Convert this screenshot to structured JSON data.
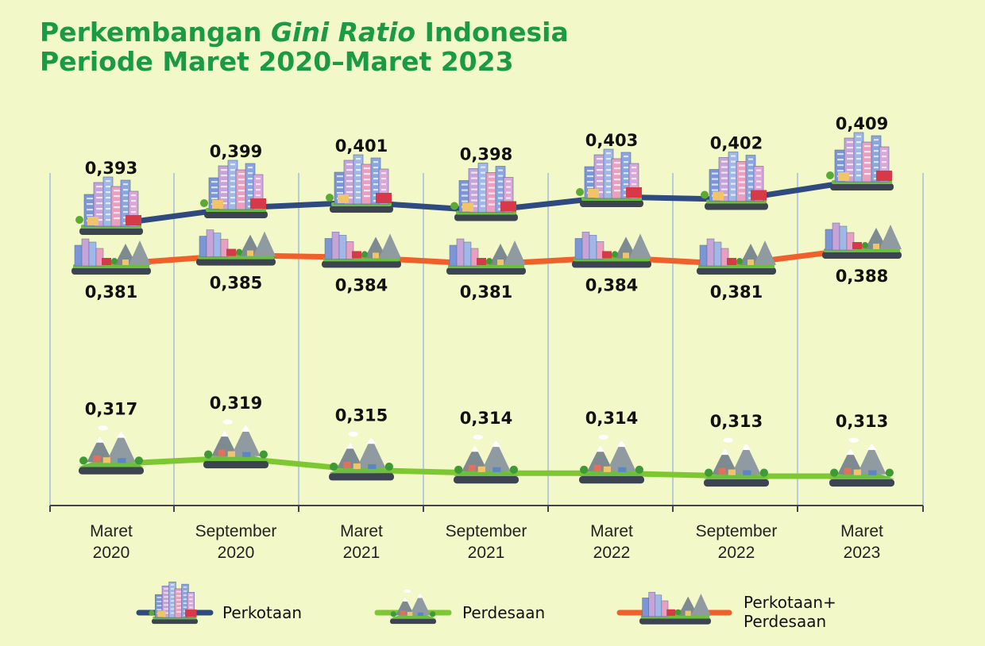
{
  "title": {
    "line1_pre": "Perkembangan ",
    "line1_italic": "Gini Ratio",
    "line1_post": " Indonesia",
    "line2": "Periode Maret 2020–Maret 2023"
  },
  "colors": {
    "background": "#f2f8c8",
    "title": "#1a9a44",
    "perkotaan": "#2e4a7e",
    "perdesaan": "#7dc832",
    "gabungan": "#f0602a",
    "gridline": "#8fb0e0"
  },
  "legend": {
    "perkotaan": "Perkotaan",
    "perdesaan": "Perdesaan",
    "gabungan_line1": "Perkotaan+",
    "gabungan_line2": "Perdesaan"
  },
  "chart_data": {
    "type": "line",
    "categories": [
      [
        "Maret",
        "2020"
      ],
      [
        "September",
        "2020"
      ],
      [
        "Maret",
        "2021"
      ],
      [
        "September",
        "2021"
      ],
      [
        "Maret",
        "2022"
      ],
      [
        "September",
        "2022"
      ],
      [
        "Maret",
        "2023"
      ]
    ],
    "series": [
      {
        "name": "Perkotaan",
        "icon": "city-icon",
        "labels": [
          "0,393",
          "0,399",
          "0,401",
          "0,398",
          "0,403",
          "0,402",
          "0,409"
        ],
        "values": [
          0.393,
          0.399,
          0.401,
          0.398,
          0.403,
          0.402,
          0.409
        ]
      },
      {
        "name": "Perkotaan+ Perdesaan",
        "icon": "city-village-icon",
        "labels": [
          "0,381",
          "0,385",
          "0,384",
          "0,381",
          "0,384",
          "0,381",
          "0,388"
        ],
        "values": [
          0.381,
          0.385,
          0.384,
          0.381,
          0.384,
          0.381,
          0.388
        ]
      },
      {
        "name": "Perdesaan",
        "icon": "village-icon",
        "labels": [
          "0,317",
          "0,319",
          "0,315",
          "0,314",
          "0,314",
          "0,313",
          "0,313"
        ],
        "values": [
          0.317,
          0.319,
          0.315,
          0.314,
          0.314,
          0.313,
          0.313
        ]
      }
    ],
    "grid": "vertical",
    "legend_position": "bottom"
  }
}
